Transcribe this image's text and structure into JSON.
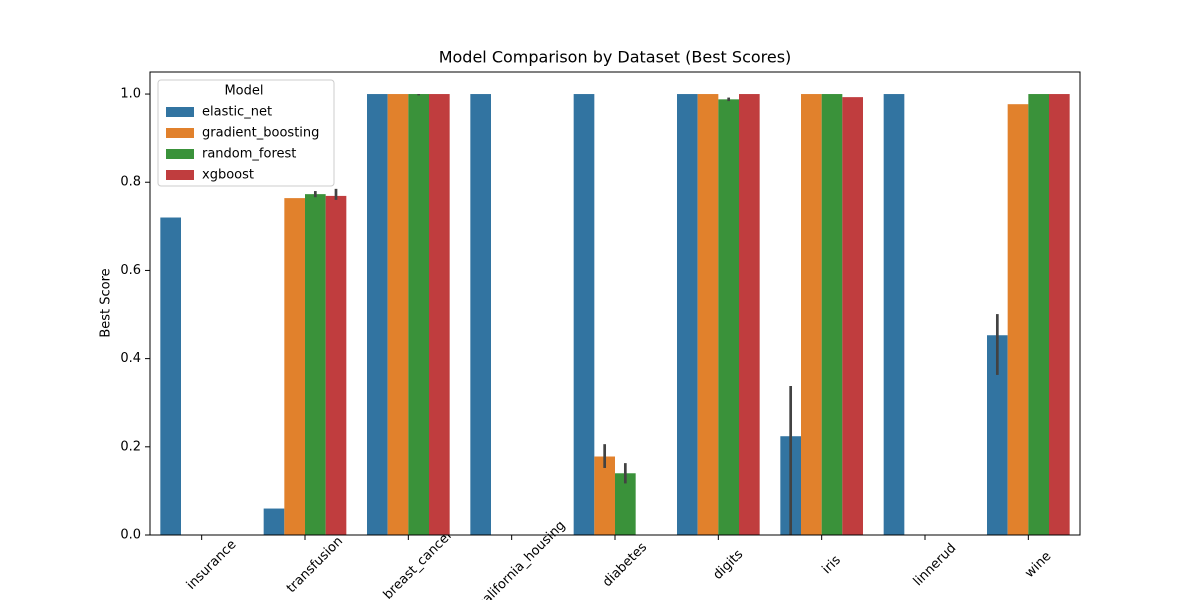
{
  "chart_data": {
    "type": "grouped_bar",
    "title": "Model Comparison by Dataset (Best Scores)",
    "y_label": "Best Score",
    "legend_title": "Model",
    "legend_position": "upper left",
    "categories": [
      "insurance",
      "transfusion",
      "breast_cancer",
      "california_housing",
      "diabetes",
      "digits",
      "iris",
      "linnerud",
      "wine"
    ],
    "series": [
      {
        "name": "elastic_net",
        "color": "#3274a1",
        "values": [
          0.72,
          0.06,
          1.0,
          1.0,
          1.0,
          1.0,
          0.224,
          1.0,
          0.453
        ],
        "ci": [
          null,
          null,
          null,
          null,
          null,
          null,
          [
            0.0,
            0.338
          ],
          null,
          [
            0.363,
            0.501
          ]
        ]
      },
      {
        "name": "gradient_boosting",
        "color": "#e1812c",
        "values": [
          null,
          0.764,
          1.0,
          null,
          0.178,
          1.0,
          1.0,
          null,
          0.977
        ],
        "ci": [
          null,
          null,
          null,
          null,
          [
            0.152,
            0.206
          ],
          null,
          null,
          null,
          null
        ]
      },
      {
        "name": "random_forest",
        "color": "#3a923a",
        "values": [
          null,
          0.773,
          1.0,
          null,
          0.14,
          0.988,
          1.0,
          null,
          1.0
        ],
        "ci": [
          null,
          [
            0.766,
            0.78
          ],
          [
            0.997,
            1.0
          ],
          null,
          [
            0.117,
            0.163
          ],
          [
            0.984,
            0.992
          ],
          null,
          null,
          null
        ]
      },
      {
        "name": "xgboost",
        "color": "#c03d3e",
        "values": [
          null,
          0.769,
          1.0,
          null,
          null,
          1.0,
          0.993,
          null,
          1.0
        ],
        "ci": [
          null,
          [
            0.76,
            0.785
          ],
          null,
          null,
          null,
          null,
          null,
          null,
          null
        ]
      }
    ],
    "ylim": [
      0,
      1.05
    ],
    "yticks": [
      {
        "value": 0,
        "label": "0.0"
      },
      {
        "value": 0.2,
        "label": "0.2"
      },
      {
        "value": 0.4,
        "label": "0.4"
      },
      {
        "value": 0.6,
        "label": "0.6"
      },
      {
        "value": 0.8,
        "label": "0.8"
      },
      {
        "value": 1.0,
        "label": "1.0"
      }
    ],
    "grid": false
  }
}
